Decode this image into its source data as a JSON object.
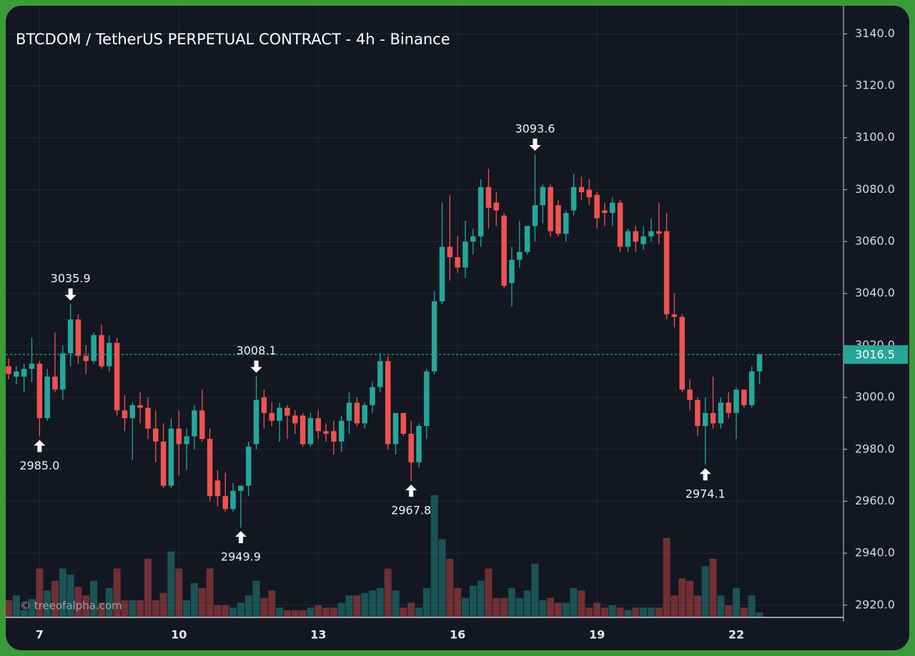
{
  "chart_data": {
    "type": "candlestick",
    "title": "BTCDOM / TetherUS PERPETUAL CONTRACT - 4h - Binance",
    "watermark": "© treeofalpha.com",
    "categories": [
      null,
      null,
      null,
      null,
      "7",
      null,
      null,
      null,
      null,
      null,
      null,
      null,
      null,
      null,
      null,
      null,
      null,
      null,
      null,
      null,
      null,
      null,
      "10",
      null,
      null,
      null,
      null,
      null,
      null,
      null,
      null,
      null,
      null,
      null,
      null,
      null,
      null,
      null,
      null,
      null,
      "13",
      null,
      null,
      null,
      null,
      null,
      null,
      null,
      null,
      null,
      null,
      null,
      null,
      null,
      null,
      null,
      null,
      null,
      "16",
      null,
      null,
      null,
      null,
      null,
      null,
      null,
      null,
      null,
      null,
      null,
      null,
      null,
      null,
      null,
      null,
      null,
      "19",
      null,
      null,
      null,
      null,
      null,
      null,
      null,
      null,
      null,
      null,
      null,
      null,
      null,
      null,
      null,
      null,
      null,
      "22",
      null,
      null,
      null
    ],
    "open": [
      3012,
      3008,
      3008,
      3011,
      3013,
      2992,
      3008,
      3003,
      3017,
      3030,
      3016,
      3014,
      3024,
      3012,
      3021,
      2995,
      2992,
      2997,
      2996,
      2988,
      2983,
      2966,
      2988,
      2982,
      2985,
      2995,
      2984,
      2968,
      2962,
      2957,
      2964,
      2966,
      2982,
      3000,
      2994,
      2991,
      2996,
      2993,
      2993,
      2982,
      2992,
      2987,
      2987,
      2983,
      2991,
      2998,
      2990,
      2997,
      3004,
      3014,
      2982,
      2994,
      2986,
      2975,
      2989,
      3010,
      3037,
      3058,
      3054,
      3050,
      3060,
      3062,
      3081,
      3075,
      3070,
      3044,
      3053,
      3056,
      3066,
      3074,
      3081,
      3074,
      3063,
      3072,
      3081,
      3080,
      3078,
      3072,
      3071,
      3075,
      3058,
      3064,
      3059,
      3062,
      3064,
      3064,
      3032,
      3031,
      3003,
      2999,
      2989,
      2994,
      2990,
      2998,
      2994,
      3003,
      2997,
      3010
    ],
    "high": [
      3015,
      3012,
      3013,
      3023,
      3014,
      3011,
      3025,
      3020,
      3035.9,
      3032,
      3020,
      3025,
      3028,
      3024,
      3023,
      3001,
      2998,
      3002,
      3000,
      2995,
      2990,
      2992,
      2995,
      2988,
      2997,
      3003,
      2988,
      2972,
      2971,
      2967,
      2966,
      2983,
      3008.1,
      3003,
      2998,
      2998,
      2997,
      2995,
      2994,
      2994,
      2995,
      2990,
      2991,
      2993,
      3002,
      3000,
      2998,
      3006,
      3017,
      3016,
      2994,
      2994,
      2991,
      2990,
      3011,
      3041,
      3075,
      3078,
      3062,
      3068,
      3065,
      3084,
      3088,
      3079,
      3071,
      3058,
      3068,
      3066,
      3093.6,
      3082,
      3082,
      3076,
      3072,
      3086,
      3085,
      3084,
      3079,
      3075,
      3077,
      3076,
      3065,
      3066,
      3066,
      3069,
      3075,
      3071,
      3040,
      3032,
      3007,
      3000,
      3000,
      3008,
      3000,
      3002,
      3004,
      3003,
      3012,
      3017
    ],
    "low": [
      3007,
      3005,
      3002,
      3006,
      2985.0,
      2991,
      3002,
      2999,
      3012,
      3013,
      3009,
      3013,
      3011,
      3010,
      2993,
      2987,
      2976,
      2990,
      2984,
      2975,
      2965,
      2965,
      2970,
      2972,
      2980,
      2983,
      2960,
      2958,
      2956,
      2956,
      2949.9,
      2962,
      2980,
      2988,
      2989,
      2983,
      2984,
      2986,
      2981,
      2981,
      2984,
      2983,
      2978,
      2979,
      2986,
      2989,
      2988,
      2994,
      3002,
      2980,
      2978,
      2985,
      2967.8,
      2973,
      2984,
      3009,
      3036,
      3045,
      3048,
      3046,
      3055,
      3058,
      3065,
      3066,
      3042,
      3035,
      3050,
      3055,
      3060,
      3067,
      3062,
      3062,
      3060,
      3070,
      3076,
      3074,
      3065,
      3066,
      3066,
      3056,
      3056,
      3056,
      3057,
      3060,
      3059,
      3030,
      3027,
      3002,
      2995,
      2985,
      2974.1,
      2988,
      2988,
      2992,
      2984,
      2996,
      2996,
      3005
    ],
    "close": [
      3009,
      3010,
      3011,
      3013,
      2992,
      3008,
      3003,
      3017,
      3030,
      3016,
      3014,
      3024,
      3012,
      3021,
      2995,
      2992,
      2997,
      2996,
      2988,
      2983,
      2966,
      2988,
      2982,
      2985,
      2995,
      2984,
      2962,
      2962,
      2957,
      2964,
      2966,
      2981,
      2999,
      2994,
      2991,
      2996,
      2993,
      2990,
      2982,
      2992,
      2987,
      2986,
      2983,
      2991,
      2998,
      2990,
      2997,
      3004,
      3014,
      2982,
      2994,
      2986,
      2975,
      2989,
      3010,
      3037,
      3058,
      3054,
      3050,
      3060,
      3062,
      3081,
      3073,
      3072,
      3043,
      3053,
      3056,
      3066,
      3074,
      3081,
      3064,
      3063,
      3071,
      3081,
      3079,
      3077,
      3069,
      3071,
      3075,
      3058,
      3064,
      3060,
      3062,
      3064,
      3063,
      3032,
      3031,
      3003,
      2999,
      2989,
      2994,
      2990,
      2998,
      2994,
      3003,
      2997,
      3010,
      3016.5
    ],
    "volume": {
      "values": [
        14,
        18,
        6,
        15,
        40,
        22,
        30,
        40,
        35,
        25,
        18,
        30,
        12,
        24,
        40,
        14,
        14,
        14,
        48,
        14,
        20,
        54,
        40,
        14,
        28,
        24,
        40,
        10,
        10,
        8,
        12,
        18,
        30,
        16,
        22,
        8,
        6,
        6,
        6,
        8,
        10,
        8,
        8,
        12,
        18,
        18,
        20,
        22,
        24,
        40,
        22,
        8,
        12,
        8,
        24,
        100,
        64,
        48,
        24,
        16,
        26,
        30,
        40,
        16,
        16,
        24,
        16,
        22,
        44,
        14,
        16,
        12,
        12,
        24,
        22,
        8,
        12,
        8,
        10,
        8,
        6,
        8,
        8,
        8,
        8,
        65,
        18,
        32,
        30,
        18,
        42,
        48,
        18,
        10,
        24,
        8,
        18,
        4
      ],
      "ylim": [
        0,
        100
      ]
    },
    "up_color": "#26a69a",
    "down_color": "#ef5350",
    "ylim": [
      2915,
      3150
    ],
    "yticks": [
      {
        "value": 2920,
        "label": "2920.0"
      },
      {
        "value": 2940,
        "label": "2940.0"
      },
      {
        "value": 2960,
        "label": "2960.0"
      },
      {
        "value": 2980,
        "label": "2980.0"
      },
      {
        "value": 3000,
        "label": "3000.0"
      },
      {
        "value": 3020,
        "label": "3020.0"
      },
      {
        "value": 3040,
        "label": "3040.0"
      },
      {
        "value": 3060,
        "label": "3060.0"
      },
      {
        "value": 3080,
        "label": "3080.0"
      },
      {
        "value": 3100,
        "label": "3100.0"
      },
      {
        "value": 3120,
        "label": "3120.0"
      },
      {
        "value": 3140,
        "label": "3140.0"
      }
    ],
    "grid": true,
    "last_price": 3016.5,
    "annotations": [
      {
        "text": "3035.9",
        "value": 3035.9,
        "kind": "high"
      },
      {
        "text": "3008.1",
        "value": 3008.1,
        "kind": "high"
      },
      {
        "text": "3093.6",
        "value": 3093.6,
        "kind": "high"
      },
      {
        "text": "2985.0",
        "value": 2985.0,
        "kind": "low"
      },
      {
        "text": "2949.9",
        "value": 2949.9,
        "kind": "low"
      },
      {
        "text": "2967.8",
        "value": 2967.8,
        "kind": "low"
      },
      {
        "text": "2974.1",
        "value": 2974.1,
        "kind": "low"
      }
    ]
  }
}
